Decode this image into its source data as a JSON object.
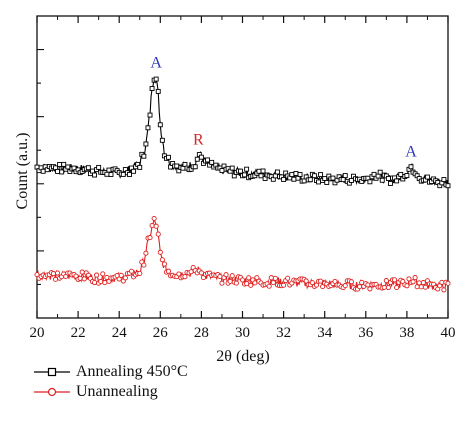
{
  "chart_data": {
    "type": "line",
    "xlabel": "2θ (deg)",
    "ylabel": "Count (a.u.)",
    "xlim": [
      20,
      40
    ],
    "ylim": [
      0,
      1
    ],
    "x_ticks": [
      "20",
      "22",
      "24",
      "26",
      "28",
      "30",
      "32",
      "34",
      "36",
      "38",
      "40"
    ],
    "y_tick_labels": false,
    "grid": false,
    "legend_position": "below",
    "series": [
      {
        "name": "Annealing 450°C",
        "color": "#000000",
        "marker": "square",
        "x": [
          20,
          21,
          22,
          23,
          24,
          24.5,
          25,
          25.3,
          25.5,
          25.6,
          25.7,
          25.8,
          25.9,
          26.0,
          26.2,
          26.5,
          27,
          27.5,
          27.7,
          27.9,
          28.2,
          28.6,
          29,
          30,
          31,
          32,
          33,
          34,
          35,
          36,
          36.5,
          37,
          37.5,
          38,
          38.2,
          38.4,
          38.7,
          39,
          39.5,
          40
        ],
        "y": [
          0.5,
          0.495,
          0.495,
          0.485,
          0.48,
          0.49,
          0.51,
          0.57,
          0.68,
          0.77,
          0.8,
          0.79,
          0.74,
          0.64,
          0.55,
          0.51,
          0.5,
          0.505,
          0.515,
          0.54,
          0.515,
          0.5,
          0.49,
          0.48,
          0.475,
          0.47,
          0.465,
          0.46,
          0.46,
          0.46,
          0.475,
          0.46,
          0.46,
          0.485,
          0.5,
          0.49,
          0.465,
          0.455,
          0.45,
          0.45
        ]
      },
      {
        "name": "Unannealing",
        "color": "#e02020",
        "marker": "circle",
        "x": [
          20,
          21,
          22,
          23,
          24,
          24.5,
          25,
          25.2,
          25.4,
          25.6,
          25.7,
          25.8,
          25.9,
          26.0,
          26.2,
          26.5,
          27,
          27.5,
          27.8,
          28.2,
          29,
          30,
          31,
          32,
          33,
          34,
          35,
          36,
          37,
          38,
          38.3,
          38.6,
          39,
          40
        ],
        "y": [
          0.145,
          0.14,
          0.14,
          0.13,
          0.135,
          0.14,
          0.155,
          0.19,
          0.25,
          0.3,
          0.32,
          0.31,
          0.27,
          0.21,
          0.17,
          0.15,
          0.145,
          0.15,
          0.16,
          0.14,
          0.13,
          0.125,
          0.12,
          0.12,
          0.115,
          0.115,
          0.11,
          0.11,
          0.11,
          0.115,
          0.125,
          0.115,
          0.11,
          0.105
        ]
      }
    ],
    "annotations": [
      {
        "text": "A",
        "x": 25.8,
        "y": 0.83,
        "color": "#2a35b8"
      },
      {
        "text": "R",
        "x": 27.85,
        "y": 0.575,
        "color": "#cc2b2b"
      },
      {
        "text": "A",
        "x": 38.2,
        "y": 0.535,
        "color": "#2a35b8"
      }
    ]
  }
}
